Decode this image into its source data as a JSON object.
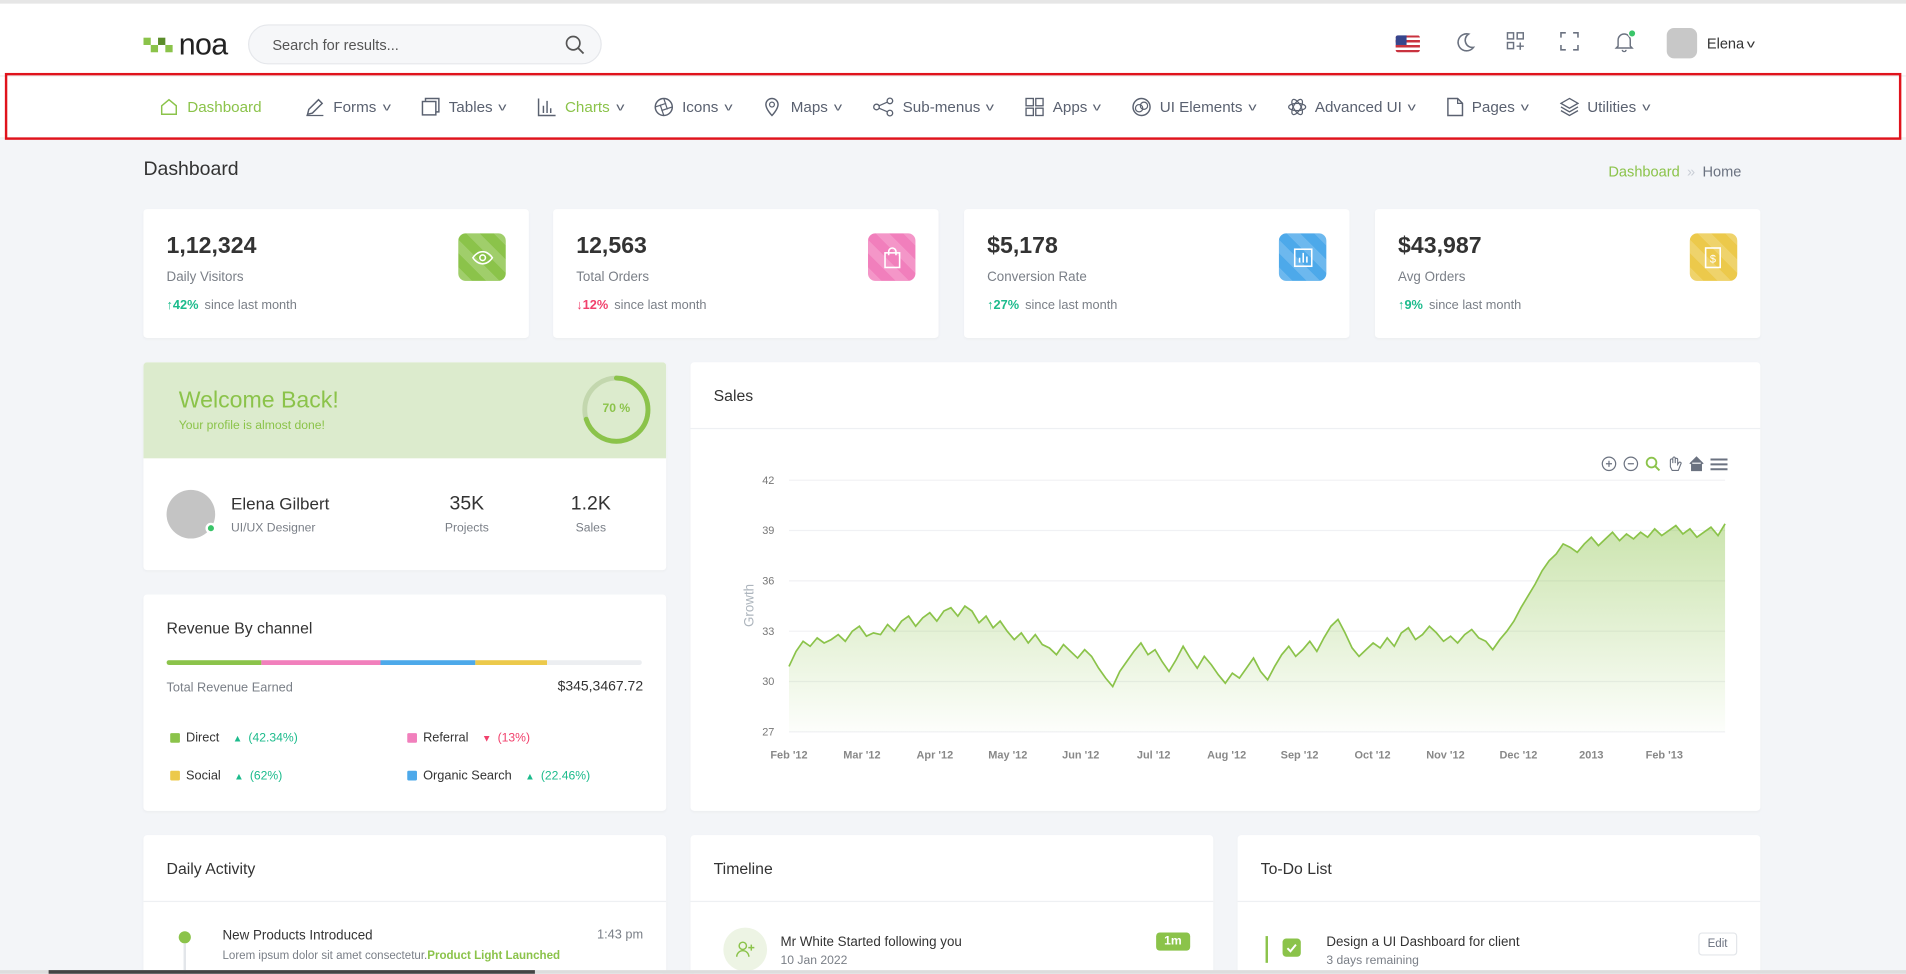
{
  "header": {
    "logo_text": "noa",
    "search": {
      "placeholder": "Search for results..."
    },
    "user_name": "Elena"
  },
  "nav": {
    "items": [
      {
        "label": "Dashboard",
        "icon": "home-icon"
      },
      {
        "label": "Forms",
        "icon": "pencil-icon"
      },
      {
        "label": "Tables",
        "icon": "table-icon"
      },
      {
        "label": "Charts",
        "icon": "bar-chart-icon"
      },
      {
        "label": "Icons",
        "icon": "aperture-icon"
      },
      {
        "label": "Maps",
        "icon": "map-pin-icon"
      },
      {
        "label": "Sub-menus",
        "icon": "share-icon"
      },
      {
        "label": "Apps",
        "icon": "grid-icon"
      },
      {
        "label": "UI Elements",
        "icon": "target-icon"
      },
      {
        "label": "Advanced UI",
        "icon": "atom-icon"
      },
      {
        "label": "Pages",
        "icon": "file-icon"
      },
      {
        "label": "Utilities",
        "icon": "layers-icon"
      }
    ]
  },
  "page": {
    "title": "Dashboard",
    "breadcrumb": {
      "current": "Dashboard",
      "home": "Home"
    }
  },
  "stats": [
    {
      "value": "1,12,324",
      "label": "Daily Visitors",
      "change": "42%",
      "direction": "up",
      "since": "since last month",
      "color": "#8bc34a",
      "icon": "eye-icon"
    },
    {
      "value": "12,563",
      "label": "Total Orders",
      "change": "12%",
      "direction": "down",
      "since": "since last month",
      "color": "#f17fbc",
      "icon": "shopping-bag-icon"
    },
    {
      "value": "$5,178",
      "label": "Conversion Rate",
      "change": "27%",
      "direction": "up",
      "since": "since last month",
      "color": "#4da9ea",
      "icon": "chart-icon"
    },
    {
      "value": "$43,987",
      "label": "Avg Orders",
      "change": "9%",
      "direction": "up",
      "since": "since last month",
      "color": "#ecc94b",
      "icon": "dollar-icon"
    }
  ],
  "welcome": {
    "title": "Welcome Back!",
    "subtitle": "Your profile is almost done!",
    "progress_label": "70 %",
    "progress": 0.7,
    "name": "Elena Gilbert",
    "role": "UI/UX Designer",
    "projects_value": "35K",
    "projects_label": "Projects",
    "sales_value": "1.2K",
    "sales_label": "Sales"
  },
  "revenue": {
    "title": "Revenue By channel",
    "total_label": "Total Revenue Earned",
    "total_value": "$345,3467.72",
    "channels": [
      {
        "name": "Direct",
        "pct": "(42.34%)",
        "direction": "up",
        "color": "#8bc34a",
        "share": 0.2
      },
      {
        "name": "Referral",
        "pct": "(13%)",
        "direction": "down",
        "color": "#f17fbc",
        "share": 0.25
      },
      {
        "name": "Social",
        "pct": "(62%)",
        "direction": "up",
        "color": "#ecc94b",
        "share": 0.15
      },
      {
        "name": "Organic Search",
        "pct": "(22.46%)",
        "direction": "up",
        "color": "#4da9ea",
        "share": 0.2
      }
    ]
  },
  "sales_chart": {
    "title": "Sales"
  },
  "chart_data": {
    "type": "area",
    "title": "Sales",
    "ylabel": "Growth",
    "xlabel": "",
    "ylim": [
      27,
      42
    ],
    "yticks": [
      27,
      30,
      33,
      36,
      39,
      42
    ],
    "xticks": [
      "Feb '12",
      "Mar '12",
      "Apr '12",
      "May '12",
      "Jun '12",
      "Jul '12",
      "Aug '12",
      "Sep '12",
      "Oct '12",
      "Nov '12",
      "Dec '12",
      "2013",
      "Feb '13"
    ],
    "grid": true,
    "color": "#8bc34a",
    "series": [
      {
        "values": [
          30.9,
          31.8,
          32.4,
          32.1,
          32.6,
          32.3,
          32.5,
          32.8,
          32.4,
          33.0,
          33.3,
          32.7,
          32.9,
          32.8,
          33.4,
          33.0,
          33.6,
          33.9,
          33.3,
          33.8,
          34.1,
          33.6,
          34.2,
          34.4,
          33.9,
          34.5,
          34.2,
          33.5,
          33.9,
          33.2,
          33.6,
          33.0,
          32.5,
          32.9,
          32.3,
          32.8,
          32.2,
          32.0,
          31.6,
          32.2,
          31.8,
          31.4,
          31.9,
          31.5,
          30.8,
          30.2,
          29.7,
          30.6,
          31.2,
          31.8,
          32.3,
          31.6,
          31.9,
          31.2,
          30.6,
          31.3,
          32.1,
          31.4,
          30.8,
          31.5,
          31.0,
          30.4,
          29.9,
          30.5,
          30.2,
          30.8,
          31.4,
          30.6,
          30.1,
          30.9,
          31.6,
          32.1,
          31.5,
          31.9,
          32.4,
          31.8,
          32.6,
          33.3,
          33.7,
          32.9,
          32.0,
          31.5,
          31.9,
          32.3,
          32.0,
          32.6,
          32.1,
          32.9,
          33.2,
          32.5,
          32.8,
          33.3,
          32.9,
          32.4,
          32.7,
          32.3,
          32.8,
          33.1,
          32.6,
          32.4,
          31.9,
          32.5,
          33.0,
          33.6,
          34.4,
          35.1,
          35.8,
          36.6,
          37.2,
          37.6,
          38.2,
          38.0,
          37.7,
          38.2,
          38.6,
          38.1,
          38.5,
          38.9,
          38.4,
          38.8,
          38.5,
          38.9,
          38.6,
          39.1,
          38.7,
          39.0,
          39.3,
          38.8,
          39.1,
          38.6,
          38.9,
          39.2,
          38.7,
          39.4
        ]
      }
    ]
  },
  "activity": {
    "title": "Daily Activity",
    "items": [
      {
        "title": "New Products Introduced",
        "desc": "Lorem ipsum dolor sit amet consectetur.",
        "highlight": "Product Light Launched",
        "time": "1:43 pm"
      }
    ]
  },
  "timeline": {
    "title": "Timeline",
    "items": [
      {
        "title": "Mr White Started following you",
        "date": "10 Jan 2022",
        "badge": "1m"
      }
    ]
  },
  "todo": {
    "title": "To-Do List",
    "items": [
      {
        "title": "Design a UI Dashboard for client",
        "sub": "3 days remaining",
        "edit": "Edit"
      }
    ]
  }
}
